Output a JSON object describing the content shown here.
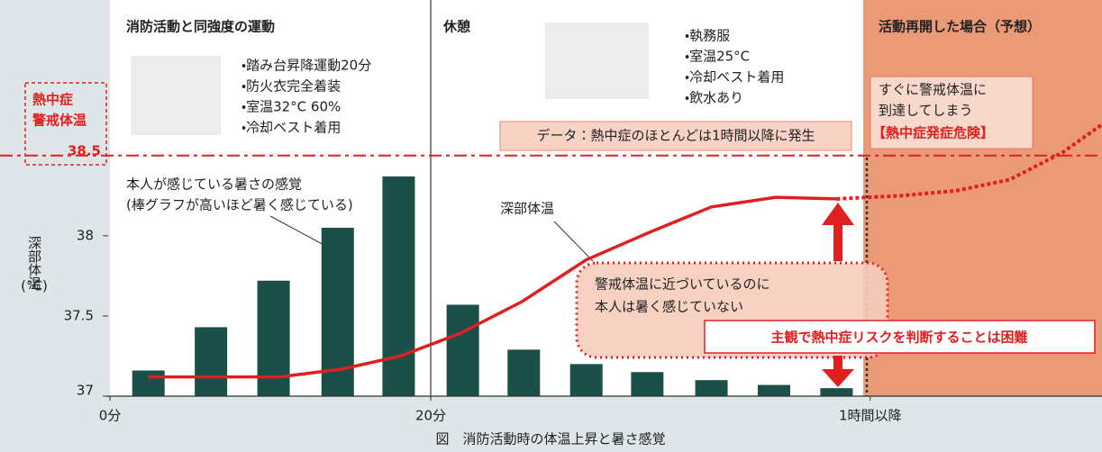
{
  "chart_data": {
    "type": "bar",
    "caption": "図　消防活動時の体温上昇と暑さ感覚",
    "ylabel": "深部体温",
    "yunit": "(°C)",
    "xlim": [
      0,
      61.85
    ],
    "ylim": [
      37,
      39.47
    ],
    "yticks": [
      37,
      37.5,
      38
    ],
    "xticks": [
      {
        "value": 0,
        "label": "0分"
      },
      {
        "value": 20,
        "label": "20分"
      },
      {
        "value": 47.4,
        "label": "1時間以降"
      }
    ],
    "threshold": {
      "value": 38.5,
      "label_lines": [
        "熱中症",
        "警戒体温"
      ],
      "color": "#e02020"
    },
    "sections": [
      {
        "title": "消防活動と同強度の運動",
        "bullets": [
          "・踏み台昇降運動20分",
          "・防火衣完全着装",
          "・室温32°C 60%",
          "・冷却ベスト着用"
        ]
      },
      {
        "title": "休憩",
        "bullets": [
          "・執務服",
          "・室温25°C",
          "・冷却ベスト着用",
          "・飲水あり"
        ]
      },
      {
        "title": "活動再開した場合（予想）",
        "notes": [
          "すぐに警戒体温に",
          "到達してしまう",
          "【熱中症発症危険】"
        ]
      }
    ],
    "data_note": "データ：熱中症のほとんどは1時間以降に発生",
    "bar_note": "(棒グラフが高いほど暑く感じている)",
    "callout": [
      "警戒体温に近づいているのに",
      "本人は暑く感じていない"
    ],
    "conclusion": "主観で熱中症リスクを判断することは困難",
    "series": [
      {
        "name": "本人が感じている暑さの感覚",
        "type": "bar",
        "color": "#1b4f4a",
        "x": [
          2.4,
          6.3,
          10.2,
          14.2,
          18.0,
          22.0,
          25.8,
          29.7,
          33.5,
          37.5,
          41.4,
          45.3
        ],
        "values": [
          37.16,
          37.43,
          37.72,
          38.05,
          38.37,
          37.57,
          37.29,
          37.2,
          37.15,
          37.1,
          37.07,
          37.05
        ]
      },
      {
        "name": "深部体温",
        "type": "line",
        "color": "#e02020",
        "x": [
          2.4,
          10.6,
          14.5,
          18.1,
          21.8,
          25.7,
          29.7,
          33.6,
          37.5,
          41.5,
          45.3
        ],
        "values": [
          37.12,
          37.12,
          37.17,
          37.25,
          37.39,
          37.59,
          37.85,
          38.02,
          38.18,
          38.24,
          38.23
        ]
      },
      {
        "type": "line",
        "dashed": true,
        "color": "#e02020",
        "x": [
          45.3,
          49.3,
          52.7,
          56.1,
          59.4,
          61.8
        ],
        "values": [
          38.23,
          38.25,
          38.28,
          38.35,
          38.52,
          38.69
        ]
      }
    ]
  }
}
